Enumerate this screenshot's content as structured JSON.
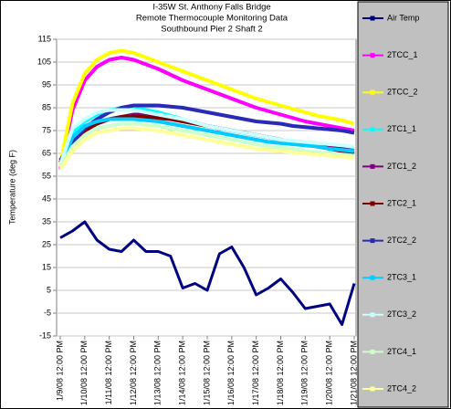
{
  "chart_data": {
    "type": "line",
    "title": "I-35W St. Anthony Falls Bridge",
    "subtitle": [
      "Remote Thermocouple Monitoring Data",
      "Southbound Pier 2 Shaft 2"
    ],
    "y_label": "Temperature (deg F)",
    "categories": [
      "1/9/08 12:00 PM",
      null,
      "1/10/08 12:00 PM",
      null,
      "1/11/08 12:00 PM",
      null,
      "1/12/08 12:00 PM",
      null,
      "1/13/08 12:00 PM",
      null,
      "1/14/08 12:00 PM",
      null,
      "1/15/08 12:00 PM",
      null,
      "1/16/08 12:00 PM",
      null,
      "1/17/08 12:00 PM",
      null,
      "1/18/08 12:00 PM",
      null,
      "1/19/08 12:00 PM",
      null,
      "1/20/08 12:00 PM",
      null,
      "1/21/08 12:00 PM"
    ],
    "ylim": [
      -15,
      115
    ],
    "yticks": [
      -15,
      -5,
      5,
      15,
      25,
      35,
      45,
      55,
      65,
      75,
      85,
      95,
      105,
      115
    ],
    "grid": true,
    "legend": "right",
    "series": [
      {
        "name": "Air Temp",
        "color": "#000080",
        "values": [
          28,
          31,
          35,
          27,
          23,
          22,
          27,
          22,
          22,
          20,
          6,
          8,
          5,
          21,
          24,
          15,
          3,
          6,
          10,
          4,
          -3,
          -2,
          -1,
          -10,
          8
        ]
      },
      {
        "name": "2TCC_1",
        "color": "#ff00ff",
        "values": [
          58,
          84,
          97,
          103,
          106,
          107,
          106,
          104,
          102,
          99.5,
          97,
          95,
          93,
          91,
          89,
          87,
          85,
          83.5,
          82,
          80.5,
          79,
          78,
          77,
          76,
          75
        ]
      },
      {
        "name": "2TCC_2",
        "color": "#ffff00",
        "values": [
          60,
          87,
          100,
          106,
          109,
          110,
          109,
          107,
          105,
          103,
          101,
          99,
          97,
          95,
          93,
          91,
          89,
          87.5,
          86,
          84.5,
          83,
          81.5,
          80.5,
          79.5,
          78
        ]
      },
      {
        "name": "2TC1_1",
        "color": "#00ffff",
        "values": [
          60,
          74,
          79,
          82,
          84,
          85,
          85,
          84,
          83,
          81.5,
          80,
          78.5,
          77,
          76,
          75,
          74,
          73,
          72,
          71,
          70,
          69.5,
          69,
          68,
          67.5,
          67
        ]
      },
      {
        "name": "2TC1_2",
        "color": "#800080",
        "values": [
          61,
          70,
          75,
          78,
          80,
          81,
          82,
          82,
          81.5,
          80.5,
          79.5,
          78.5,
          77,
          76,
          75,
          74,
          73,
          72,
          71,
          70,
          69,
          68,
          67.5,
          67,
          66
        ]
      },
      {
        "name": "2TC2_1",
        "color": "#800000",
        "values": [
          61,
          70,
          75,
          78,
          80,
          81,
          81,
          81,
          80.5,
          80,
          79,
          78,
          77,
          76,
          75,
          74,
          73,
          72,
          71,
          70,
          69,
          68,
          67,
          66,
          65
        ]
      },
      {
        "name": "2TC2_2",
        "color": "#2a2ab8",
        "values": [
          62,
          70,
          76,
          80,
          83,
          85,
          86,
          86,
          86,
          85.5,
          85,
          84,
          83,
          82,
          81,
          80,
          79,
          78.5,
          78,
          77,
          76.5,
          76,
          75.5,
          75,
          74
        ]
      },
      {
        "name": "2TC3_1",
        "color": "#00ccff",
        "values": [
          60,
          72,
          77,
          79,
          80,
          80,
          80,
          79.5,
          79,
          78,
          77,
          76,
          75,
          74,
          73,
          72,
          71,
          70,
          69.5,
          69,
          68.5,
          68,
          67,
          66.5,
          66
        ]
      },
      {
        "name": "2TC3_2",
        "color": "#ccffff",
        "values": [
          60,
          76,
          80,
          83,
          84,
          84,
          84,
          83,
          82,
          81,
          80,
          78.5,
          77,
          76,
          75,
          74,
          73,
          72,
          71,
          70.5,
          70,
          69.5,
          69,
          68.5,
          68
        ]
      },
      {
        "name": "2TC4_1",
        "color": "#ccffcc",
        "values": [
          59,
          68,
          73,
          76,
          77,
          78,
          78,
          77.5,
          77,
          76,
          75,
          74,
          73,
          72,
          71,
          70,
          69,
          68,
          67.5,
          67,
          66,
          65.5,
          65,
          64.5,
          64
        ]
      },
      {
        "name": "2TC4_2",
        "color": "#ffff99",
        "values": [
          58,
          66,
          71,
          74,
          75,
          76,
          76,
          75.5,
          75,
          74,
          73,
          72,
          71,
          70,
          69,
          68,
          67,
          66.5,
          66,
          65.5,
          65,
          64.5,
          64,
          63.5,
          63
        ]
      }
    ]
  }
}
